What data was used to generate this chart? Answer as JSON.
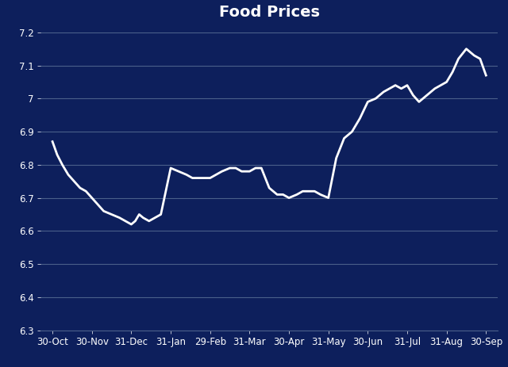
{
  "title": "Food Prices",
  "background_color": "#0d1f5c",
  "line_color": "#ffffff",
  "grid_color": "#4a5f8a",
  "text_color": "#ffffff",
  "ylim": [
    6.3,
    7.22
  ],
  "yticks": [
    6.3,
    6.4,
    6.5,
    6.6,
    6.7,
    6.8,
    6.9,
    7.0,
    7.1,
    7.2
  ],
  "ytick_labels": [
    "6.3",
    "6.4",
    "6.5",
    "6.6",
    "6.7",
    "6.8",
    "6.9",
    "7",
    "7.1",
    "7.2"
  ],
  "x_labels": [
    "30-Oct",
    "30-Nov",
    "31-Dec",
    "31-Jan",
    "29-Feb",
    "31-Mar",
    "30-Apr",
    "31-May",
    "30-Jun",
    "31-Jul",
    "31-Aug",
    "30-Sep"
  ],
  "title_fontsize": 14,
  "tick_fontsize": 8.5,
  "line_width": 2.0,
  "data_x": [
    0.0,
    0.12,
    0.25,
    0.4,
    0.55,
    0.7,
    0.85,
    1.0,
    1.15,
    1.3,
    1.5,
    1.7,
    1.85,
    2.0,
    2.1,
    2.2,
    2.3,
    2.45,
    2.6,
    2.75,
    3.0,
    3.2,
    3.4,
    3.55,
    3.7,
    3.85,
    4.0,
    4.15,
    4.3,
    4.5,
    4.65,
    4.8,
    5.0,
    5.15,
    5.3,
    5.5,
    5.7,
    5.85,
    6.0,
    6.2,
    6.35,
    6.5,
    6.65,
    6.8,
    7.0,
    7.2,
    7.4,
    7.6,
    7.8,
    8.0,
    8.2,
    8.4,
    8.55,
    8.7,
    8.85,
    9.0,
    9.15,
    9.3,
    9.5,
    9.7,
    9.85,
    10.0,
    10.15,
    10.3,
    10.5,
    10.7,
    10.85,
    11.0
  ],
  "data_y": [
    6.87,
    6.83,
    6.8,
    6.77,
    6.75,
    6.73,
    6.72,
    6.7,
    6.68,
    6.66,
    6.65,
    6.64,
    6.63,
    6.62,
    6.63,
    6.65,
    6.64,
    6.63,
    6.64,
    6.65,
    6.79,
    6.78,
    6.77,
    6.76,
    6.76,
    6.76,
    6.76,
    6.77,
    6.78,
    6.79,
    6.79,
    6.78,
    6.78,
    6.79,
    6.79,
    6.73,
    6.71,
    6.71,
    6.7,
    6.71,
    6.72,
    6.72,
    6.72,
    6.71,
    6.7,
    6.82,
    6.88,
    6.9,
    6.94,
    6.99,
    7.0,
    7.02,
    7.03,
    7.04,
    7.03,
    7.04,
    7.01,
    6.99,
    7.01,
    7.03,
    7.04,
    7.05,
    7.08,
    7.12,
    7.15,
    7.13,
    7.12,
    7.07
  ]
}
